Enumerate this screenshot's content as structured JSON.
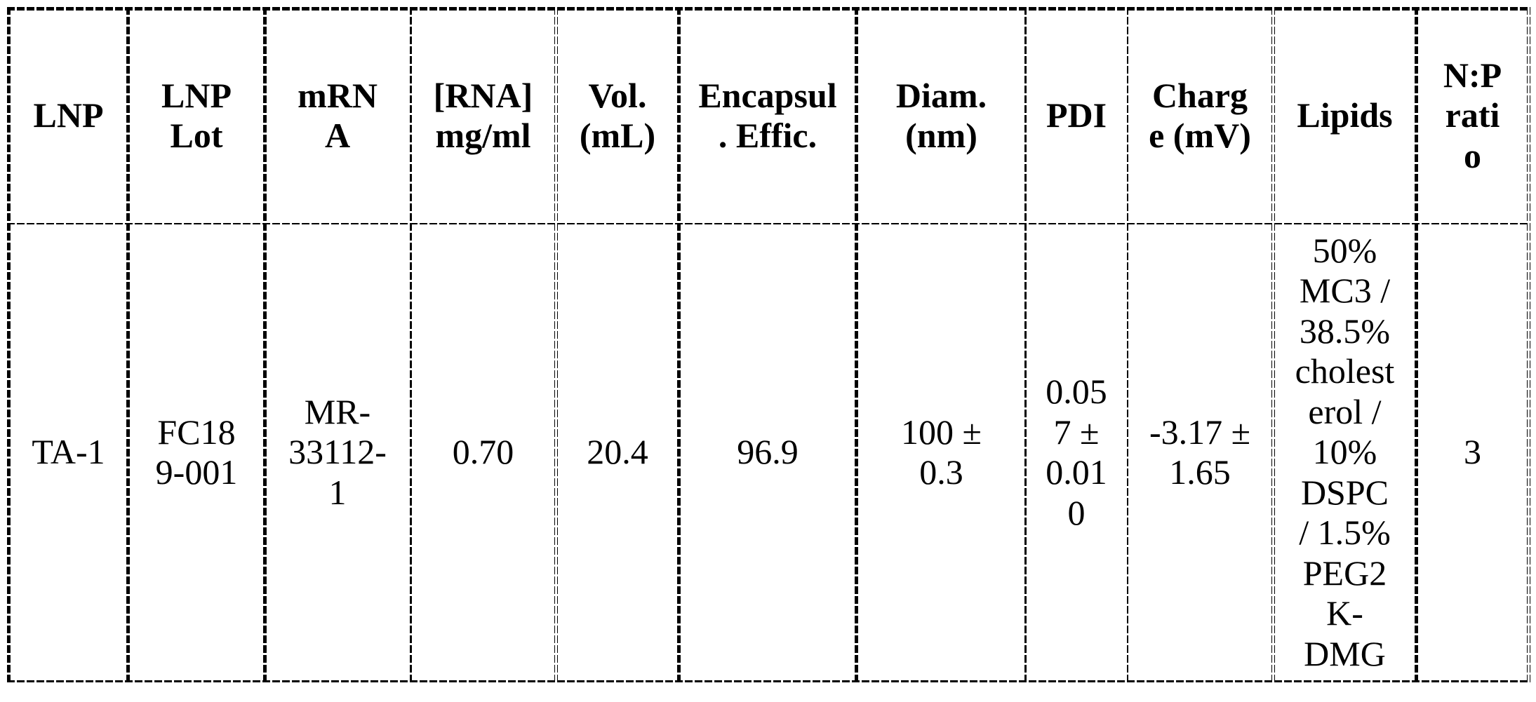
{
  "table": {
    "title": "LNP formulation characteristics table",
    "headers": [
      "LNP",
      "LNP\nLot",
      "mRN\nA",
      "[RNA]\nmg/ml",
      "Vol.\n(mL)",
      "Encapsul\n. Effic.",
      "Diam.\n(nm)",
      "PDI",
      "Charg\ne (mV)",
      "Lipids",
      "N:P\nrati\no"
    ],
    "row": [
      "TA-1",
      "FC18\n9-001",
      "MR-\n33112-\n1",
      "0.70",
      "20.4",
      "96.9",
      "100 ±\n0.3",
      "0.05\n7 ±\n0.01\n0",
      "-3.17 ±\n1.65",
      "50%\nMC3 /\n38.5%\ncholest\nerol /\n10%\nDSPC\n/ 1.5%\nPEG2\nK-\nDMG",
      "3"
    ],
    "semantic_values": {
      "lnp": "TA-1",
      "lnp_lot": "FC189-001",
      "mrna": "MR-33112-1",
      "rna_mg_ml": "0.70",
      "vol_ml": "20.4",
      "encapsulation_efficiency": "96.9",
      "diam_nm": "100 ± 0.3",
      "pdi": "0.057 ± 0.010",
      "charge_mv": "-3.17 ± 1.65",
      "lipids": "50% MC3 / 38.5% cholesterol / 10% DSPC / 1.5% PEG2K-DMG",
      "np_ratio": "3"
    }
  },
  "colors": {
    "border": "#000000",
    "cell_background": "#ffffff",
    "text": "#000000"
  }
}
